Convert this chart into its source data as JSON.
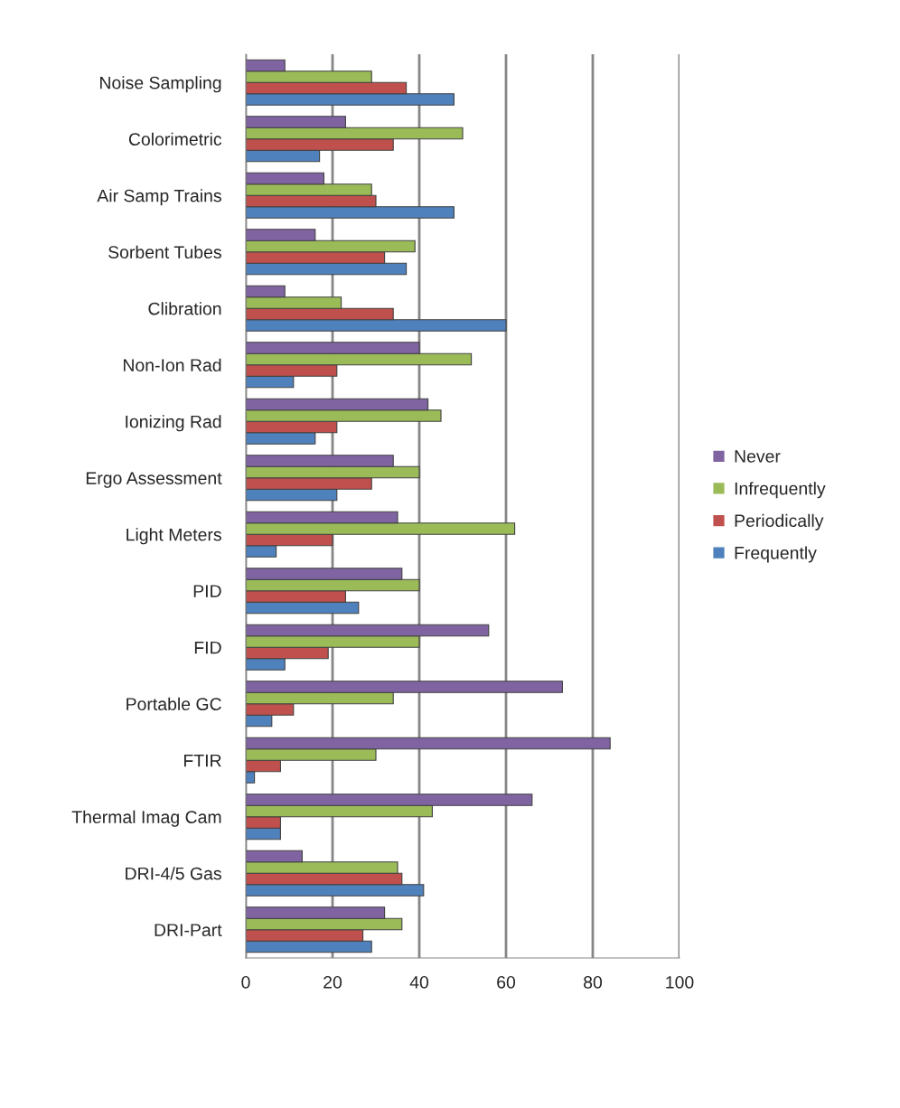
{
  "chart_data": {
    "type": "bar",
    "orientation": "horizontal",
    "categories": [
      "Noise Sampling",
      "Colorimetric",
      "Air Samp Trains",
      "Sorbent Tubes",
      "Clibration",
      "Non-Ion Rad",
      "Ionizing Rad",
      "Ergo Assessment",
      "Light Meters",
      "PID",
      "FID",
      "Portable GC",
      "FTIR",
      "Thermal Imag Cam",
      "DRI-4/5 Gas",
      "DRI-Part"
    ],
    "series": [
      {
        "name": "Frequently",
        "color": "#4f81bd",
        "values": [
          48,
          17,
          48,
          37,
          60,
          11,
          16,
          21,
          7,
          26,
          9,
          6,
          2,
          8,
          41,
          29
        ]
      },
      {
        "name": "Periodically",
        "color": "#c0504d",
        "values": [
          37,
          34,
          30,
          32,
          34,
          21,
          21,
          29,
          20,
          23,
          19,
          11,
          8,
          8,
          36,
          27
        ]
      },
      {
        "name": "Infrequently",
        "color": "#9bbb59",
        "values": [
          29,
          50,
          29,
          39,
          22,
          52,
          45,
          40,
          62,
          40,
          40,
          34,
          30,
          43,
          35,
          36
        ]
      },
      {
        "name": "Never",
        "color": "#8064a2",
        "values": [
          9,
          23,
          18,
          16,
          9,
          40,
          42,
          34,
          35,
          36,
          56,
          73,
          84,
          66,
          13,
          32
        ]
      }
    ],
    "xlim": [
      0,
      100
    ],
    "xticks": [
      0,
      20,
      40,
      60,
      80,
      100
    ],
    "grid": "x",
    "legend": "right"
  }
}
